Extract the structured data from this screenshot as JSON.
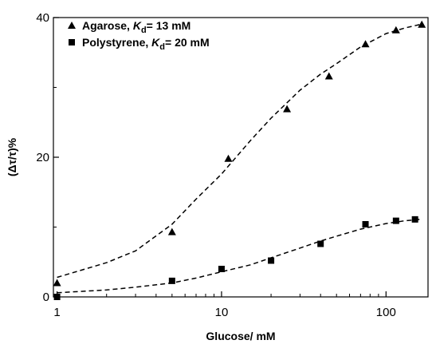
{
  "chart_data": {
    "type": "scatter",
    "x_scale": "log",
    "xlabel": "Glucose/ mM",
    "ylabel": "(Δτ/τ)%",
    "xlim": [
      0.95,
      180
    ],
    "ylim": [
      0,
      40
    ],
    "x_ticks": [
      1,
      10,
      100
    ],
    "x_tick_labels": [
      "1",
      "10",
      "100"
    ],
    "y_ticks": [
      0,
      20,
      40
    ],
    "y_tick_labels": [
      "0",
      "20",
      "40"
    ],
    "legend_position": "top-left",
    "grid": false,
    "series": [
      {
        "name": "Agarose, Kd= 13 mM",
        "marker": "triangle",
        "fit_line": "dashed",
        "x": [
          1,
          5,
          11,
          25,
          45,
          75,
          115,
          165
        ],
        "y": [
          2.0,
          9.3,
          19.8,
          26.9,
          31.6,
          36.2,
          38.2,
          39.0
        ]
      },
      {
        "name": "Polystyrene, Kd= 20 mM",
        "marker": "square",
        "fit_line": "dashed",
        "x": [
          1,
          5,
          10,
          20,
          40,
          75,
          115,
          150
        ],
        "y": [
          0.0,
          2.3,
          4.0,
          5.2,
          7.6,
          10.4,
          10.9,
          11.1
        ]
      }
    ],
    "fit_curves": [
      {
        "series": "Agarose, Kd= 13 mM",
        "x": [
          1,
          2,
          3,
          5,
          7,
          10,
          15,
          20,
          30,
          40,
          50,
          70,
          100,
          130,
          160
        ],
        "y": [
          2.8,
          4.9,
          6.6,
          10.4,
          14.0,
          17.6,
          22.4,
          25.6,
          29.6,
          31.9,
          33.4,
          35.8,
          37.7,
          38.5,
          39.0
        ]
      },
      {
        "series": "Polystyrene, Kd= 20 mM",
        "x": [
          1,
          2,
          3,
          5,
          7,
          10,
          15,
          20,
          30,
          40,
          50,
          70,
          100,
          130,
          160
        ],
        "y": [
          0.6,
          1.0,
          1.4,
          2.0,
          2.7,
          3.6,
          4.6,
          5.6,
          7.0,
          8.0,
          8.7,
          9.7,
          10.5,
          10.9,
          11.1
        ]
      }
    ],
    "legend": [
      {
        "marker": "triangle",
        "prefix": "Agarose, ",
        "k": "K",
        "sub": "d",
        "suffix": "= 13 mM"
      },
      {
        "marker": "square",
        "prefix": "Polystyrene, ",
        "k": "K",
        "sub": "d",
        "suffix": "= 20 mM"
      }
    ]
  }
}
